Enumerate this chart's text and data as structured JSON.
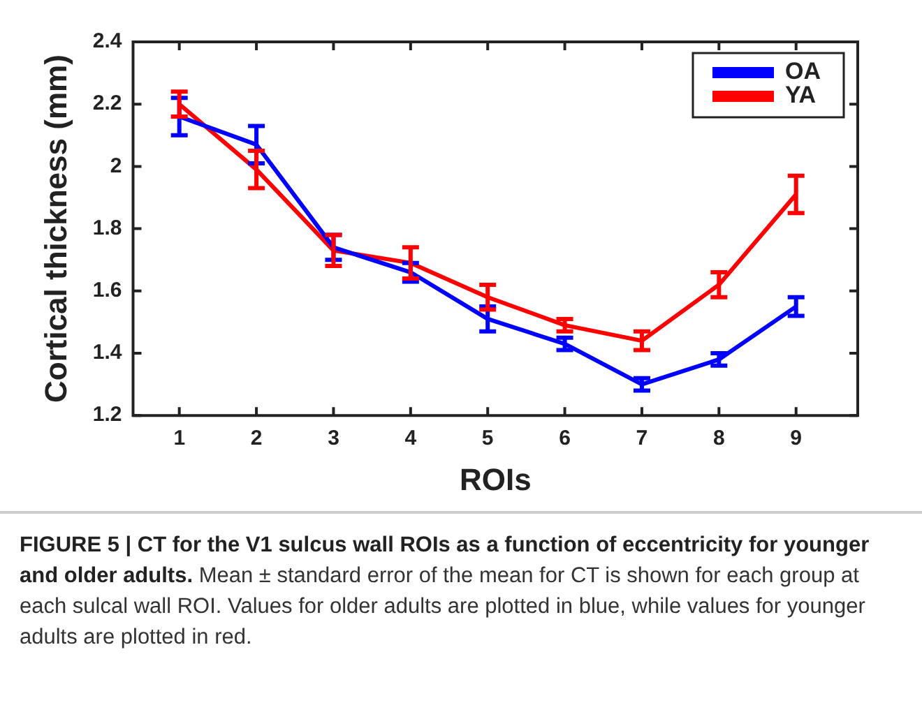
{
  "chart_data": {
    "type": "line",
    "xlabel": "ROIs",
    "ylabel": "Cortical thickness (mm)",
    "x": [
      1,
      2,
      3,
      4,
      5,
      6,
      7,
      8,
      9
    ],
    "xlim": [
      0.4,
      9.8
    ],
    "xticks": [
      1,
      2,
      3,
      4,
      5,
      6,
      7,
      8,
      9
    ],
    "ylim": [
      1.2,
      2.4
    ],
    "yticks": [
      1.2,
      1.4,
      1.6,
      1.8,
      2,
      2.2,
      2.4
    ],
    "series": [
      {
        "name": "OA",
        "color": "#0000ff",
        "values": [
          2.16,
          2.07,
          1.74,
          1.66,
          1.51,
          1.43,
          1.3,
          1.38,
          1.55
        ],
        "errors": [
          0.06,
          0.06,
          0.04,
          0.03,
          0.04,
          0.02,
          0.02,
          0.02,
          0.03
        ]
      },
      {
        "name": "YA",
        "color": "#ff0000",
        "values": [
          2.2,
          1.99,
          1.73,
          1.69,
          1.58,
          1.49,
          1.44,
          1.62,
          1.91
        ],
        "errors": [
          0.04,
          0.06,
          0.05,
          0.05,
          0.04,
          0.02,
          0.03,
          0.04,
          0.06
        ]
      }
    ],
    "legend": "top right",
    "grid": false,
    "line_style": "solid",
    "annotations": [
      "FIGURE 5 | CT for the V1 sulcus wall ROIs as a function of eccentricity for younger and older adults.",
      "Mean ± standard error of the mean for CT is shown for each group at each sulcal wall ROI. Values for older adults are plotted in blue, while values for younger adults are plotted in red."
    ]
  }
}
